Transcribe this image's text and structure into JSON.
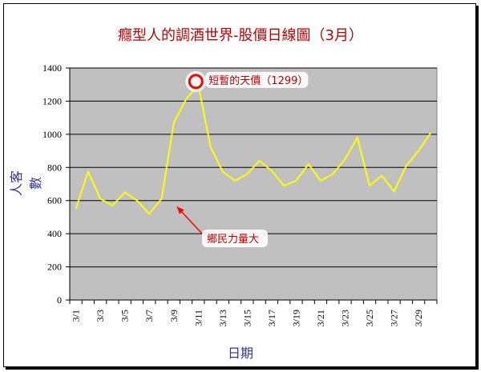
{
  "chart_data": {
    "type": "line",
    "title": "癮型人的調酒世界-股價日線圖（3月）",
    "xlabel": "日期",
    "ylabel": "人客數",
    "ylim": [
      0,
      1400
    ],
    "yticks": [
      0,
      200,
      400,
      600,
      800,
      1000,
      1200,
      1400
    ],
    "grid": "horizontal",
    "x": [
      "3/1",
      "3/2",
      "3/3",
      "3/4",
      "3/5",
      "3/6",
      "3/7",
      "3/8",
      "3/9",
      "3/10",
      "3/11",
      "3/12",
      "3/13",
      "3/14",
      "3/15",
      "3/16",
      "3/17",
      "3/18",
      "3/19",
      "3/20",
      "3/21",
      "3/22",
      "3/23",
      "3/24",
      "3/25",
      "3/26",
      "3/27",
      "3/28",
      "3/29",
      "3/30"
    ],
    "xtick_labels": [
      "3/1",
      "3/3",
      "3/5",
      "3/7",
      "3/9",
      "3/11",
      "3/13",
      "3/15",
      "3/17",
      "3/19",
      "3/21",
      "3/23",
      "3/25",
      "3/27",
      "3/29"
    ],
    "series": [
      {
        "color": "#ffff00",
        "values": [
          550,
          775,
          610,
          570,
          650,
          600,
          520,
          610,
          1070,
          1210,
          1299,
          925,
          775,
          720,
          760,
          840,
          780,
          690,
          720,
          820,
          720,
          760,
          850,
          980,
          690,
          750,
          655,
          810,
          900,
          1010
        ]
      }
    ],
    "annotations": [
      {
        "text": "短暫的天價（1299）",
        "target_index": 10,
        "marker": "red-circle"
      },
      {
        "text": "鄉民力量大",
        "target_index": 8,
        "marker": "red-arrow"
      }
    ]
  },
  "colors": {
    "plot_bg": "#c0c0c0",
    "line": "#ffff00",
    "annotation": "#c00000",
    "title": "#c00000",
    "axis_title": "#333399"
  }
}
